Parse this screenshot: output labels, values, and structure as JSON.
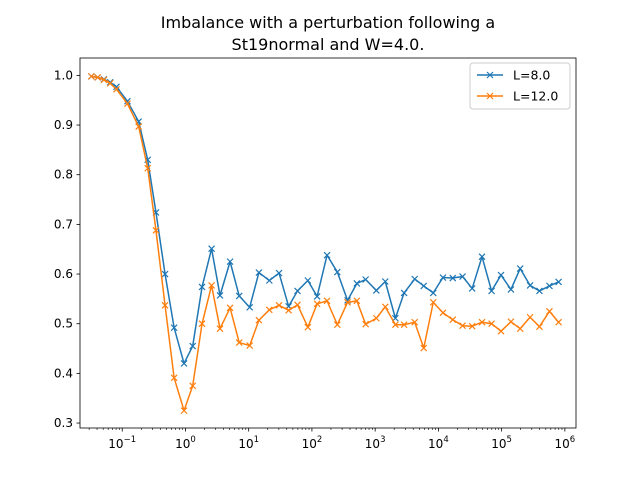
{
  "chart_data": {
    "type": "line",
    "title_lines": [
      "Imbalance with a perturbation following a",
      "St19normal and W=4.0."
    ],
    "xscale": "log",
    "xlim": [
      0.0215,
      1500000
    ],
    "ylim": [
      0.29,
      1.035
    ],
    "x_ticks": [
      {
        "value": 0.1,
        "base": "10",
        "exp": "−1"
      },
      {
        "value": 1,
        "base": "10",
        "exp": "0"
      },
      {
        "value": 10,
        "base": "10",
        "exp": "1"
      },
      {
        "value": 100,
        "base": "10",
        "exp": "2"
      },
      {
        "value": 1000,
        "base": "10",
        "exp": "3"
      },
      {
        "value": 10000,
        "base": "10",
        "exp": "4"
      },
      {
        "value": 100000,
        "base": "10",
        "exp": "5"
      },
      {
        "value": 1000000,
        "base": "10",
        "exp": "6"
      }
    ],
    "y_ticks": [
      {
        "value": 0.3,
        "label": "0.3"
      },
      {
        "value": 0.4,
        "label": "0.4"
      },
      {
        "value": 0.5,
        "label": "0.5"
      },
      {
        "value": 0.6,
        "label": "0.6"
      },
      {
        "value": 0.7,
        "label": "0.7"
      },
      {
        "value": 0.8,
        "label": "0.8"
      },
      {
        "value": 0.9,
        "label": "0.9"
      },
      {
        "value": 1.0,
        "label": "1.0"
      }
    ],
    "grid": false,
    "legend_position": "top-right",
    "x": [
      0.0325,
      0.0409,
      0.0514,
      0.0646,
      0.0812,
      0.121,
      0.182,
      0.253,
      0.342,
      0.476,
      0.662,
      0.95,
      1.302,
      1.83,
      2.59,
      3.52,
      5.08,
      7.08,
      10.37,
      14.5,
      21.2,
      30.2,
      42.8,
      59.2,
      86.2,
      120.8,
      173.5,
      252.1,
      366.1,
      513.2,
      707.4,
      1043.6,
      1446,
      2088,
      2870,
      4221,
      5862,
      8295,
      11804,
      16886,
      24110,
      34224,
      48990,
      69342,
      97776,
      140300,
      196600,
      281900,
      396400,
      570500,
      796300
    ],
    "series": [
      {
        "name": "L=8.0",
        "color": "#1f77b4",
        "values": [
          0.998,
          0.996,
          0.992,
          0.986,
          0.977,
          0.948,
          0.907,
          0.83,
          0.724,
          0.6,
          0.492,
          0.42,
          0.455,
          0.574,
          0.651,
          0.557,
          0.625,
          0.556,
          0.533,
          0.603,
          0.587,
          0.602,
          0.535,
          0.566,
          0.587,
          0.555,
          0.638,
          0.604,
          0.547,
          0.581,
          0.589,
          0.567,
          0.585,
          0.511,
          0.562,
          0.59,
          0.576,
          0.562,
          0.593,
          0.592,
          0.595,
          0.571,
          0.635,
          0.566,
          0.598,
          0.569,
          0.611,
          0.577,
          0.566,
          0.576,
          0.584
        ]
      },
      {
        "name": "L=12.0",
        "color": "#ff7f0e",
        "values": [
          0.998,
          0.996,
          0.991,
          0.984,
          0.972,
          0.943,
          0.897,
          0.813,
          0.688,
          0.537,
          0.391,
          0.325,
          0.375,
          0.5,
          0.577,
          0.49,
          0.532,
          0.462,
          0.456,
          0.507,
          0.528,
          0.537,
          0.527,
          0.538,
          0.493,
          0.54,
          0.546,
          0.498,
          0.543,
          0.546,
          0.499,
          0.511,
          0.534,
          0.498,
          0.498,
          0.503,
          0.451,
          0.543,
          0.522,
          0.508,
          0.496,
          0.495,
          0.503,
          0.5,
          0.485,
          0.504,
          0.49,
          0.513,
          0.494,
          0.525,
          0.503
        ]
      }
    ]
  }
}
